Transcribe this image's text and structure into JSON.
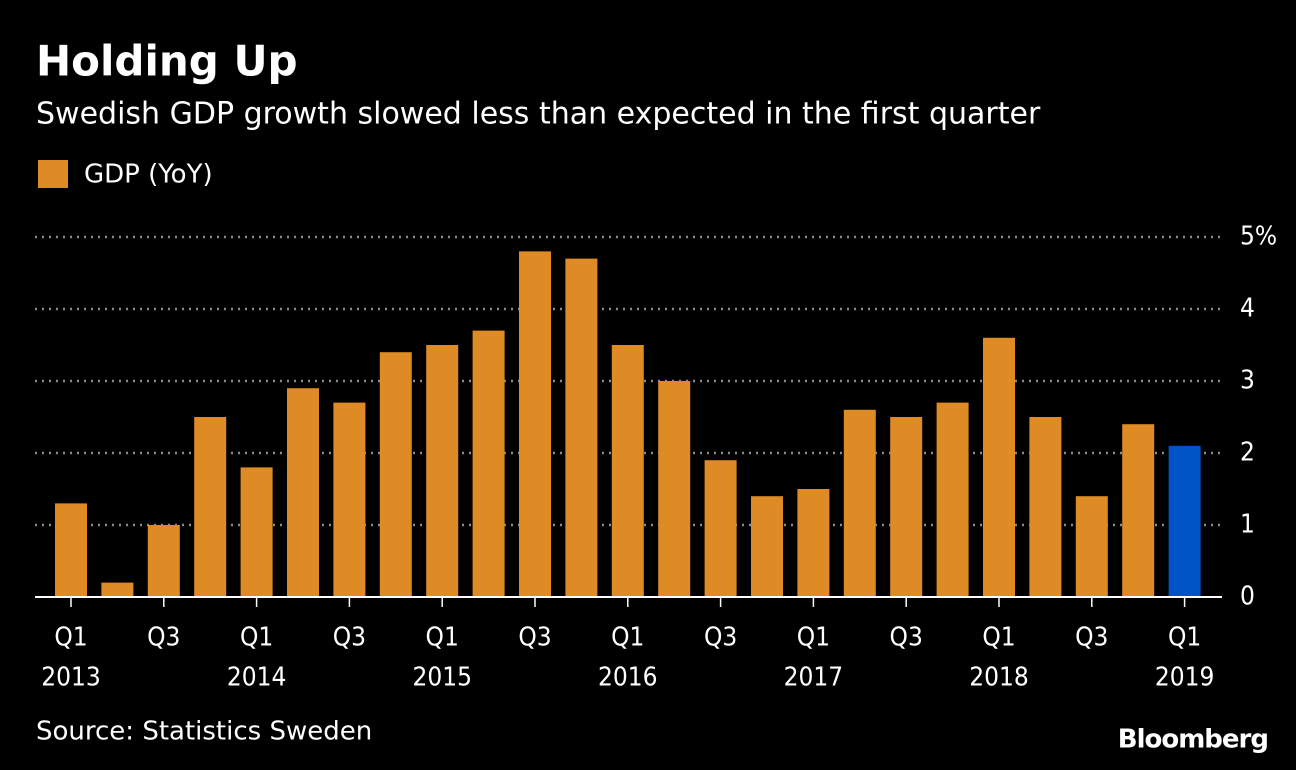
{
  "chart_data": {
    "type": "bar",
    "title": "Holding Up",
    "subtitle": "Swedish GDP growth slowed less than expected in the first quarter",
    "legend": "GDP (YoY)",
    "source": "Source: Statistics Sweden",
    "brand": "Bloomberg",
    "categories": [
      "Q1",
      null,
      "Q3",
      null,
      "Q1",
      null,
      "Q3",
      null,
      "Q1",
      null,
      "Q3",
      null,
      "Q1",
      null,
      "Q3",
      null,
      "Q1",
      null,
      "Q3",
      null,
      "Q1",
      null,
      "Q3",
      null,
      "Q1"
    ],
    "years": [
      "2013",
      null,
      null,
      null,
      "2014",
      null,
      null,
      null,
      "2015",
      null,
      null,
      null,
      "2016",
      null,
      null,
      null,
      "2017",
      null,
      null,
      null,
      "2018",
      null,
      null,
      null,
      "2019"
    ],
    "values": [
      1.3,
      0.2,
      1.0,
      2.5,
      1.8,
      2.9,
      2.7,
      3.4,
      3.5,
      3.7,
      4.8,
      4.7,
      3.5,
      3.0,
      1.9,
      1.4,
      1.5,
      2.6,
      2.5,
      2.7,
      3.6,
      2.5,
      1.4,
      2.4,
      2.1
    ],
    "color": "#de8b25",
    "colors": [
      "#de8b25",
      "#de8b25",
      "#de8b25",
      "#de8b25",
      "#de8b25",
      "#de8b25",
      "#de8b25",
      "#de8b25",
      "#de8b25",
      "#de8b25",
      "#de8b25",
      "#de8b25",
      "#de8b25",
      "#de8b25",
      "#de8b25",
      "#de8b25",
      "#de8b25",
      "#de8b25",
      "#de8b25",
      "#de8b25",
      "#de8b25",
      "#de8b25",
      "#de8b25",
      "#de8b25",
      "#0053c4"
    ],
    "ylim": [
      0,
      5
    ],
    "yticks": [
      0,
      1,
      2,
      3,
      4,
      {
        "value": 5,
        "label": "5%"
      }
    ],
    "grid": true
  }
}
